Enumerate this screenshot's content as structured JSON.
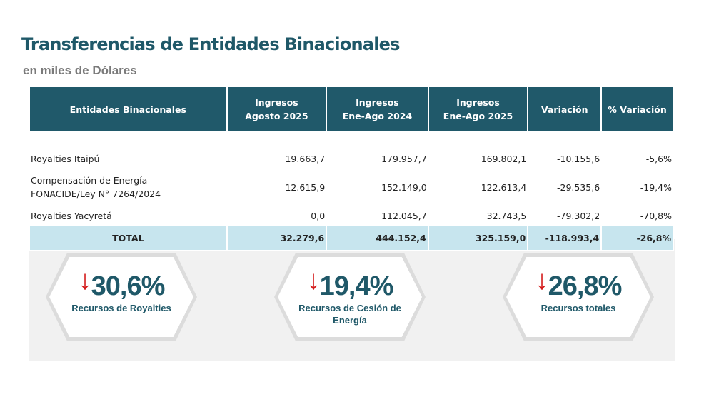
{
  "title": "Transferencias de Entidades Binacionales",
  "subtitle": "en miles de Dólares",
  "table": {
    "headers": [
      "Entidades Binacionales",
      "Ingresos\nAgosto 2025",
      "Ingresos\nEne-Ago 2024",
      "Ingresos\nEne-Ago 2025",
      "Variación",
      "% Variación"
    ],
    "rows": [
      [
        "Royalties Itaipú",
        "19.663,7",
        "179.957,7",
        "169.802,1",
        "-10.155,6",
        "-5,6%"
      ],
      [
        "Compensación de Energía FONACIDE/Ley N° 7264/2024",
        "12.615,9",
        "152.149,0",
        "122.613,4",
        "-29.535,6",
        "-19,4%"
      ],
      [
        "Royalties Yacyretá",
        "0,0",
        "112.045,7",
        "32.743,5",
        "-79.302,2",
        "-70,8%"
      ]
    ],
    "total": [
      "TOTAL",
      "32.279,6",
      "444.152,4",
      "325.159,0",
      "-118.993,4",
      "-26,8%"
    ]
  },
  "kpis": [
    {
      "value": "30,6%",
      "label": "Recursos de Royalties",
      "icon": "arrow-down-icon"
    },
    {
      "value": "19,4%",
      "label": "Recursos de Cesión de Energía",
      "icon": "arrow-down-icon"
    },
    {
      "value": "26,8%",
      "label": "Recursos totales",
      "icon": "arrow-down-icon"
    }
  ],
  "colors": {
    "primary": "#20596a",
    "total_row": "#c7e5ee",
    "arrow": "#d41c1c"
  }
}
